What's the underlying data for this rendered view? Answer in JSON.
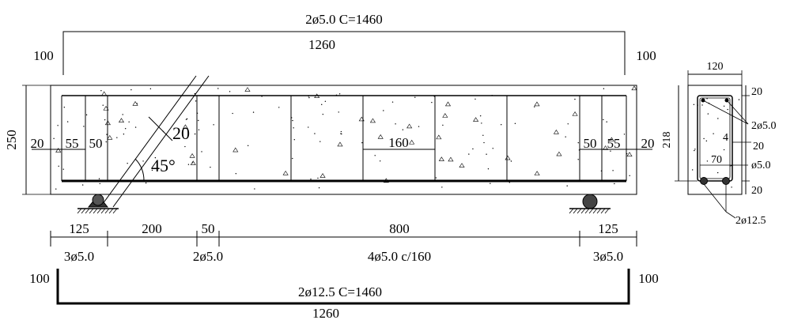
{
  "top_bar": {
    "label": "2ø5.0 C=1460",
    "length": "1260",
    "hook_left": "100",
    "hook_right": "100"
  },
  "bottom_bar": {
    "label": "2ø12.5 C=1460",
    "length": "1260",
    "hook_left": "100",
    "hook_right": "100"
  },
  "elevation": {
    "height": "250",
    "cover_left": "20",
    "cover_right": "20",
    "dim_55_left": "55",
    "dim_50_left": "50",
    "dim_50_right": "50",
    "dim_55_right": "55",
    "stirrup_spacing": "160",
    "diag_offset": "20",
    "angle": "45°"
  },
  "spans": {
    "d125_left": "125",
    "d200": "200",
    "d50": "50",
    "d800": "800",
    "d125_right": "125"
  },
  "stirrup_groups": {
    "left": "3ø5.0",
    "mid_left": "2ø5.0",
    "center": "4ø5.0 c/160",
    "right": "3ø5.0"
  },
  "section": {
    "width": "120",
    "height": "218",
    "top_cover": "20",
    "bottom_cover": "20",
    "inner_width": "70",
    "side_cover": "20",
    "side_small": "4",
    "top_bar": "2ø5.0",
    "stirrup": "ø5.0",
    "bottom_bar": "2ø12.5"
  }
}
